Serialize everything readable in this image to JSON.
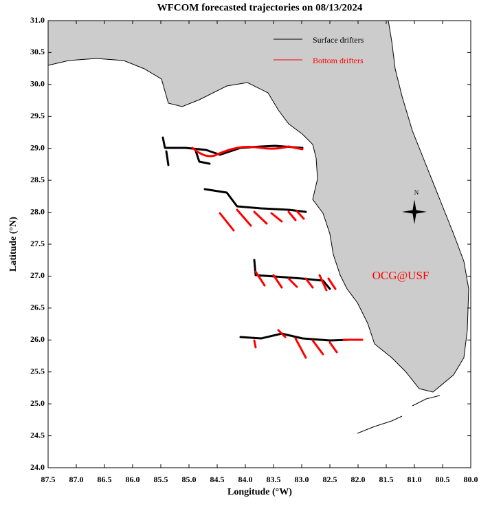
{
  "map": {
    "title": "WFCOM forecasted trajectories on 08/13/2024",
    "xlabel": "Longitude (°W)",
    "ylabel": "Latitude (°N)",
    "xlim": [
      87.5,
      80
    ],
    "ylim": [
      24,
      31
    ],
    "xticks": [
      {
        "value": 87.5,
        "label": "87.5"
      },
      {
        "value": 87,
        "label": "87.0"
      },
      {
        "value": 86.5,
        "label": "86.5"
      },
      {
        "value": 86,
        "label": "86.0"
      },
      {
        "value": 85.5,
        "label": "85.5"
      },
      {
        "value": 85,
        "label": "85.0"
      },
      {
        "value": 84.5,
        "label": "84.5"
      },
      {
        "value": 84,
        "label": "84.0"
      },
      {
        "value": 83.5,
        "label": "83.5"
      },
      {
        "value": 83,
        "label": "83.0"
      },
      {
        "value": 82.5,
        "label": "82.5"
      },
      {
        "value": 82,
        "label": "82.0"
      },
      {
        "value": 81.5,
        "label": "81.5"
      },
      {
        "value": 81,
        "label": "81.0"
      },
      {
        "value": 80.5,
        "label": "80.5"
      },
      {
        "value": 80,
        "label": "80.0"
      }
    ],
    "yticks": [
      {
        "value": 24,
        "label": "24.0"
      },
      {
        "value": 24.5,
        "label": "24.5"
      },
      {
        "value": 25,
        "label": "25.0"
      },
      {
        "value": 25.5,
        "label": "25.5"
      },
      {
        "value": 26,
        "label": "26.0"
      },
      {
        "value": 26.5,
        "label": "26.5"
      },
      {
        "value": 27,
        "label": "27.0"
      },
      {
        "value": 27.5,
        "label": "27.5"
      },
      {
        "value": 28,
        "label": "28.0"
      },
      {
        "value": 28.5,
        "label": "28.5"
      },
      {
        "value": 29,
        "label": "29.0"
      },
      {
        "value": 29.5,
        "label": "29.5"
      },
      {
        "value": 30,
        "label": "30.0"
      },
      {
        "value": 30.5,
        "label": "30.5"
      },
      {
        "value": 31,
        "label": "31.0"
      }
    ],
    "legend": [
      {
        "name": "Surface drifters",
        "color": "#000000"
      },
      {
        "name": "Bottom drifters",
        "color": "#ff0000"
      }
    ],
    "annotation": "OCG@USF",
    "compass_label": "N"
  }
}
